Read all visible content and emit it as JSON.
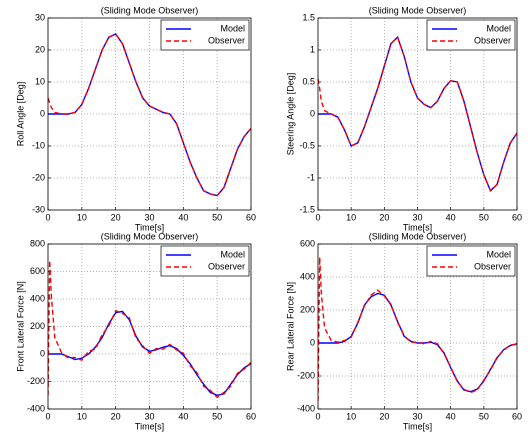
{
  "chart_data": [
    {
      "type": "line",
      "title": "(Sliding Mode Observer)",
      "x_label": "Time[s]",
      "y_label": "Roll Angle [Deg]",
      "x": [
        0,
        0.5,
        1,
        2,
        4,
        6,
        8,
        10,
        12,
        14,
        16,
        18,
        20,
        22,
        24,
        26,
        28,
        30,
        32,
        34,
        36,
        38,
        40,
        42,
        44,
        46,
        48,
        50,
        52,
        54,
        56,
        58,
        60
      ],
      "series": [
        {
          "name": "Model",
          "color": "#0000ff",
          "linestyle": "solid",
          "values": [
            0,
            0,
            0,
            0,
            0,
            0,
            0.5,
            3,
            8,
            14,
            20,
            24,
            25,
            22,
            16,
            10,
            5,
            2.5,
            1.5,
            0.5,
            0,
            -3,
            -9,
            -15,
            -20,
            -24,
            -25,
            -25.5,
            -23,
            -17,
            -11,
            -7,
            -4.5
          ]
        },
        {
          "name": "Observer",
          "color": "#ff0000",
          "linestyle": "dashed",
          "values": [
            5,
            3.5,
            2,
            0.5,
            0,
            0,
            0.5,
            3,
            8,
            14,
            20,
            24,
            25,
            22,
            16,
            10,
            5,
            2.5,
            1.5,
            0.5,
            0,
            -3,
            -9,
            -15,
            -20,
            -24,
            -25,
            -25.5,
            -23,
            -17,
            -11,
            -7,
            -4.5
          ]
        }
      ],
      "xlim": [
        0,
        60
      ],
      "xticks": [
        0,
        10,
        20,
        30,
        40,
        50,
        60
      ],
      "ylim": [
        -30,
        30
      ],
      "yticks": [
        -30,
        -20,
        -10,
        0,
        10,
        20,
        30
      ],
      "grid": true,
      "legend": "upper right"
    },
    {
      "type": "line",
      "title": "(Sliding Mode Observer)",
      "x_label": "Time[s]",
      "y_label": "Steering Angle [Deg]",
      "x": [
        0,
        0.5,
        1,
        2,
        4,
        6,
        8,
        10,
        12,
        14,
        16,
        18,
        20,
        22,
        24,
        26,
        28,
        30,
        32,
        34,
        36,
        38,
        40,
        42,
        44,
        46,
        48,
        50,
        52,
        54,
        56,
        58,
        60
      ],
      "series": [
        {
          "name": "Model",
          "color": "#0000ff",
          "linestyle": "solid",
          "values": [
            0,
            0,
            0,
            0,
            0,
            -0.05,
            -0.25,
            -0.5,
            -0.45,
            -0.2,
            0.1,
            0.4,
            0.75,
            1.1,
            1.2,
            0.9,
            0.5,
            0.25,
            0.15,
            0.1,
            0.2,
            0.4,
            0.52,
            0.5,
            0.2,
            -0.2,
            -0.6,
            -0.95,
            -1.2,
            -1.1,
            -0.75,
            -0.45,
            -0.3
          ]
        },
        {
          "name": "Observer",
          "color": "#ff0000",
          "linestyle": "dashed",
          "values": [
            0.55,
            0.4,
            0.2,
            0.05,
            0,
            -0.05,
            -0.25,
            -0.5,
            -0.45,
            -0.2,
            0.1,
            0.4,
            0.75,
            1.1,
            1.2,
            0.9,
            0.5,
            0.25,
            0.15,
            0.1,
            0.2,
            0.4,
            0.52,
            0.5,
            0.2,
            -0.2,
            -0.6,
            -0.95,
            -1.2,
            -1.1,
            -0.75,
            -0.45,
            -0.3
          ]
        }
      ],
      "xlim": [
        0,
        60
      ],
      "xticks": [
        0,
        10,
        20,
        30,
        40,
        50,
        60
      ],
      "ylim": [
        -1.5,
        1.5
      ],
      "yticks": [
        -1.5,
        -1,
        -0.5,
        0,
        0.5,
        1,
        1.5
      ],
      "grid": true,
      "legend": "upper right"
    },
    {
      "type": "line",
      "title": "(Sliding Mode Observer)",
      "x_label": "Time[s]",
      "y_label": "Front Lateral Force [N]",
      "x": [
        0,
        0.5,
        1,
        2,
        4,
        6,
        8,
        10,
        12,
        14,
        16,
        18,
        20,
        22,
        24,
        26,
        28,
        30,
        32,
        34,
        36,
        38,
        40,
        42,
        44,
        46,
        48,
        50,
        52,
        54,
        56,
        58,
        60
      ],
      "series": [
        {
          "name": "Model",
          "color": "#0000ff",
          "linestyle": "solid",
          "values": [
            0,
            0,
            0,
            0,
            0,
            -20,
            -40,
            -30,
            0,
            50,
            120,
            220,
            300,
            310,
            250,
            130,
            50,
            20,
            30,
            50,
            60,
            40,
            -10,
            -70,
            -150,
            -220,
            -280,
            -300,
            -290,
            -220,
            -150,
            -100,
            -70
          ]
        },
        {
          "name": "Observer",
          "color": "#ff0000",
          "linestyle": "dashed",
          "values": [
            -300,
            680,
            420,
            120,
            10,
            -30,
            -25,
            -45,
            20,
            35,
            140,
            205,
            315,
            295,
            265,
            115,
            60,
            5,
            40,
            35,
            70,
            30,
            5,
            -85,
            -135,
            -235,
            -265,
            -315,
            -280,
            -235,
            -140,
            -110,
            -60
          ]
        }
      ],
      "xlim": [
        0,
        60
      ],
      "xticks": [
        0,
        10,
        20,
        30,
        40,
        50,
        60
      ],
      "ylim": [
        -400,
        800
      ],
      "yticks": [
        -400,
        -200,
        0,
        200,
        400,
        600,
        800
      ],
      "grid": true,
      "legend": "upper right"
    },
    {
      "type": "line",
      "title": "(Sliding Mode Observer)",
      "x_label": "Time[s]",
      "y_label": "Rear Lateral Force [N]",
      "x": [
        0,
        0.5,
        1,
        2,
        4,
        6,
        8,
        10,
        12,
        14,
        16,
        18,
        20,
        22,
        24,
        26,
        28,
        30,
        32,
        34,
        36,
        38,
        40,
        42,
        44,
        46,
        48,
        50,
        52,
        54,
        56,
        58,
        60
      ],
      "series": [
        {
          "name": "Model",
          "color": "#0000ff",
          "linestyle": "solid",
          "values": [
            0,
            0,
            0,
            0,
            0,
            0,
            10,
            40,
            120,
            230,
            280,
            300,
            290,
            230,
            130,
            40,
            10,
            0,
            0,
            5,
            -10,
            -60,
            -150,
            -230,
            -285,
            -295,
            -280,
            -230,
            -160,
            -90,
            -40,
            -15,
            -5
          ]
        },
        {
          "name": "Observer",
          "color": "#ff0000",
          "linestyle": "dashed",
          "values": [
            -350,
            520,
            300,
            90,
            15,
            5,
            15,
            35,
            125,
            225,
            290,
            320,
            285,
            235,
            125,
            45,
            5,
            5,
            -5,
            10,
            -5,
            -65,
            -145,
            -235,
            -280,
            -300,
            -285,
            -225,
            -165,
            -85,
            -45,
            -10,
            -10
          ]
        }
      ],
      "xlim": [
        0,
        60
      ],
      "xticks": [
        0,
        10,
        20,
        30,
        40,
        50,
        60
      ],
      "ylim": [
        -400,
        600
      ],
      "yticks": [
        -400,
        -200,
        0,
        200,
        400,
        600
      ],
      "grid": true,
      "legend": "upper right"
    }
  ]
}
